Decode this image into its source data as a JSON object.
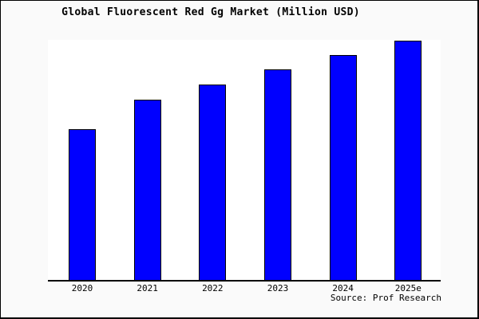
{
  "chart_data": {
    "type": "bar",
    "title": "Global Fluorescent Red Gg Market (Million USD)",
    "categories": [
      "2020",
      "2021",
      "2022",
      "2023",
      "2024",
      "2025e"
    ],
    "values": [
      189,
      226,
      245,
      264,
      282,
      300
    ],
    "value_scale": "relative bar heights in plot pixels (no y-axis labels shown)",
    "ylim": [
      0,
      301
    ],
    "xlabel": "",
    "ylabel": "",
    "grid": false,
    "legend": false,
    "bar_color": "#0000ff",
    "bar_border_color": "#000000",
    "plot_background": "#ffffff",
    "figure_background": "#fafafa"
  },
  "footer": {
    "source": "Source: Prof Research"
  }
}
